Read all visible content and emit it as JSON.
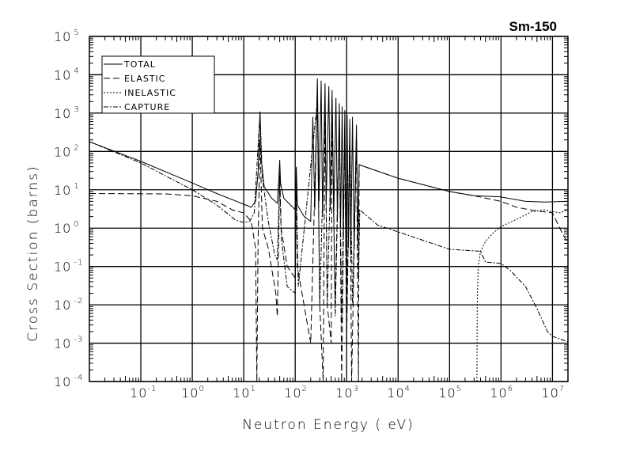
{
  "chart_data": {
    "type": "line",
    "title": "Sm-150",
    "xlabel": "Neutron Energy ( eV)",
    "ylabel": "Cross Section (barns)",
    "xscale": "log",
    "yscale": "log",
    "xlim": [
      0.01,
      20000000
    ],
    "ylim": [
      0.0001,
      100000
    ],
    "grid": true,
    "legend_position": "top-left",
    "x_tick_labels": [
      {
        "base": "10",
        "exp": "-1",
        "value": 0.1
      },
      {
        "base": "10",
        "exp": "0",
        "value": 1
      },
      {
        "base": "10",
        "exp": "1",
        "value": 10
      },
      {
        "base": "10",
        "exp": "2",
        "value": 100
      },
      {
        "base": "10",
        "exp": "3",
        "value": 1000
      },
      {
        "base": "10",
        "exp": "4",
        "value": 10000
      },
      {
        "base": "10",
        "exp": "5",
        "value": 100000
      },
      {
        "base": "10",
        "exp": "6",
        "value": 1000000
      },
      {
        "base": "10",
        "exp": "7",
        "value": 10000000
      }
    ],
    "y_tick_labels": [
      {
        "base": "10",
        "exp": "5",
        "value": 100000
      },
      {
        "base": "10",
        "exp": "4",
        "value": 10000
      },
      {
        "base": "10",
        "exp": "3",
        "value": 1000
      },
      {
        "base": "10",
        "exp": "2",
        "value": 100
      },
      {
        "base": "10",
        "exp": "1",
        "value": 10
      },
      {
        "base": "10",
        "exp": "0",
        "value": 1
      },
      {
        "base": "10",
        "exp": "-1",
        "value": 0.1
      },
      {
        "base": "10",
        "exp": "-2",
        "value": 0.01
      },
      {
        "base": "10",
        "exp": "-3",
        "value": 0.001
      },
      {
        "base": "10",
        "exp": "-4",
        "value": 0.0001
      }
    ],
    "series": [
      {
        "name": "TOTAL",
        "style": "solid",
        "points": [
          [
            0.01,
            180
          ],
          [
            0.1,
            55
          ],
          [
            1,
            15
          ],
          [
            3,
            8
          ],
          [
            10,
            4.2
          ],
          [
            14,
            3.5
          ],
          [
            17,
            5
          ],
          [
            19,
            30
          ],
          [
            20.7,
            1100
          ],
          [
            22,
            60
          ],
          [
            25,
            12
          ],
          [
            35,
            6
          ],
          [
            45,
            4.5
          ],
          [
            48,
            20
          ],
          [
            50,
            60
          ],
          [
            52,
            15
          ],
          [
            60,
            6
          ],
          [
            90,
            3.5
          ],
          [
            100,
            3
          ],
          [
            105,
            40
          ],
          [
            110,
            4
          ],
          [
            150,
            2
          ],
          [
            200,
            1.5
          ],
          [
            220,
            800
          ],
          [
            240,
            3
          ],
          [
            270,
            8000
          ],
          [
            290,
            5
          ],
          [
            320,
            7000
          ],
          [
            340,
            2
          ],
          [
            380,
            6000
          ],
          [
            400,
            4
          ],
          [
            450,
            5000
          ],
          [
            480,
            3
          ],
          [
            520,
            4000
          ],
          [
            560,
            2
          ],
          [
            620,
            2500
          ],
          [
            660,
            1.5
          ],
          [
            720,
            1800
          ],
          [
            760,
            1
          ],
          [
            820,
            1500
          ],
          [
            860,
            0.5
          ],
          [
            920,
            1200
          ],
          [
            960,
            0.3
          ],
          [
            1020,
            900
          ],
          [
            1080,
            0.3
          ],
          [
            1150,
            700
          ],
          [
            1200,
            0.2
          ],
          [
            1300,
            800
          ],
          [
            1400,
            0.3
          ],
          [
            1550,
            500
          ],
          [
            1650,
            0.4
          ],
          [
            1750,
            45
          ],
          [
            10000,
            20
          ],
          [
            100000,
            9
          ],
          [
            300000,
            7
          ],
          [
            1000000,
            6.5
          ],
          [
            3000000,
            5
          ],
          [
            7000000,
            4.8
          ],
          [
            20000000,
            5
          ]
        ]
      },
      {
        "name": "ELASTIC",
        "style": "dashed",
        "points": [
          [
            0.01,
            8
          ],
          [
            0.3,
            7.8
          ],
          [
            1,
            7
          ],
          [
            3,
            5
          ],
          [
            6,
            3
          ],
          [
            10,
            2.5
          ],
          [
            14,
            1.5
          ],
          [
            17,
            0.3
          ],
          [
            18,
            0.0001
          ],
          [
            19,
            0.5
          ],
          [
            20.7,
            200
          ],
          [
            23,
            1
          ],
          [
            30,
            0.3
          ],
          [
            42,
            0.02
          ],
          [
            45,
            0.005
          ],
          [
            48,
            1
          ],
          [
            50,
            30
          ],
          [
            53,
            1
          ],
          [
            70,
            0.1
          ],
          [
            100,
            0.05
          ],
          [
            105,
            20
          ],
          [
            110,
            0.1
          ],
          [
            200,
            0.001
          ],
          [
            270,
            4000
          ],
          [
            300,
            0.01
          ],
          [
            350,
            0.0001
          ],
          [
            380,
            3000
          ],
          [
            420,
            0.01
          ],
          [
            500,
            0.001
          ],
          [
            520,
            2000
          ],
          [
            600,
            0.01
          ],
          [
            720,
            800
          ],
          [
            800,
            0.0001
          ],
          [
            920,
            500
          ],
          [
            1000,
            0.001
          ],
          [
            1150,
            400
          ],
          [
            1250,
            0.0001
          ],
          [
            1550,
            300
          ],
          [
            1700,
            0.0001
          ],
          [
            1750,
            45
          ],
          [
            10000,
            20
          ],
          [
            100000,
            9
          ],
          [
            300000,
            7
          ],
          [
            1000000,
            5
          ],
          [
            2000000,
            3.5
          ],
          [
            5000000,
            2.8
          ],
          [
            10000000,
            2.5
          ],
          [
            15000000,
            0.8
          ],
          [
            20000000,
            0.4
          ]
        ]
      },
      {
        "name": "INELASTIC",
        "style": "dotted",
        "points": [
          [
            340000,
            0.0001
          ],
          [
            345000,
            0.01
          ],
          [
            360000,
            0.1
          ],
          [
            400000,
            0.25
          ],
          [
            500000,
            0.45
          ],
          [
            700000,
            0.75
          ],
          [
            1000000,
            1.1
          ],
          [
            2000000,
            1.7
          ],
          [
            4000000,
            2.7
          ],
          [
            7000000,
            3
          ],
          [
            10000000,
            2.7
          ],
          [
            14000000,
            2.5
          ],
          [
            20000000,
            3
          ]
        ]
      },
      {
        "name": "CAPTURE",
        "style": "dashdot",
        "points": [
          [
            0.01,
            180
          ],
          [
            0.1,
            50
          ],
          [
            1,
            10
          ],
          [
            3,
            4
          ],
          [
            7,
            1.6
          ],
          [
            10,
            1.4
          ],
          [
            13,
            1.5
          ],
          [
            16,
            2.5
          ],
          [
            20.7,
            1000
          ],
          [
            23,
            20
          ],
          [
            30,
            1.5
          ],
          [
            40,
            0.2
          ],
          [
            45,
            0.15
          ],
          [
            50,
            20
          ],
          [
            54,
            0.5
          ],
          [
            70,
            0.03
          ],
          [
            100,
            0.02
          ],
          [
            105,
            10
          ],
          [
            115,
            0.03
          ],
          [
            270,
            2000
          ],
          [
            300,
            0.01
          ],
          [
            380,
            1500
          ],
          [
            420,
            0.01
          ],
          [
            520,
            1000
          ],
          [
            600,
            0.005
          ],
          [
            720,
            600
          ],
          [
            800,
            0.003
          ],
          [
            920,
            400
          ],
          [
            1000,
            0.002
          ],
          [
            1150,
            300
          ],
          [
            1300,
            0.01
          ],
          [
            1550,
            200
          ],
          [
            1700,
            0.05
          ],
          [
            1800,
            3
          ],
          [
            4000,
            1.2
          ],
          [
            10000,
            0.8
          ],
          [
            100000,
            0.28
          ],
          [
            400000,
            0.25
          ],
          [
            500000,
            0.13
          ],
          [
            1000000,
            0.12
          ],
          [
            1500000,
            0.08
          ],
          [
            3000000,
            0.03
          ],
          [
            5000000,
            0.008
          ],
          [
            8000000,
            0.002
          ],
          [
            10000000,
            0.0015
          ],
          [
            20000000,
            0.0011
          ]
        ]
      }
    ]
  }
}
